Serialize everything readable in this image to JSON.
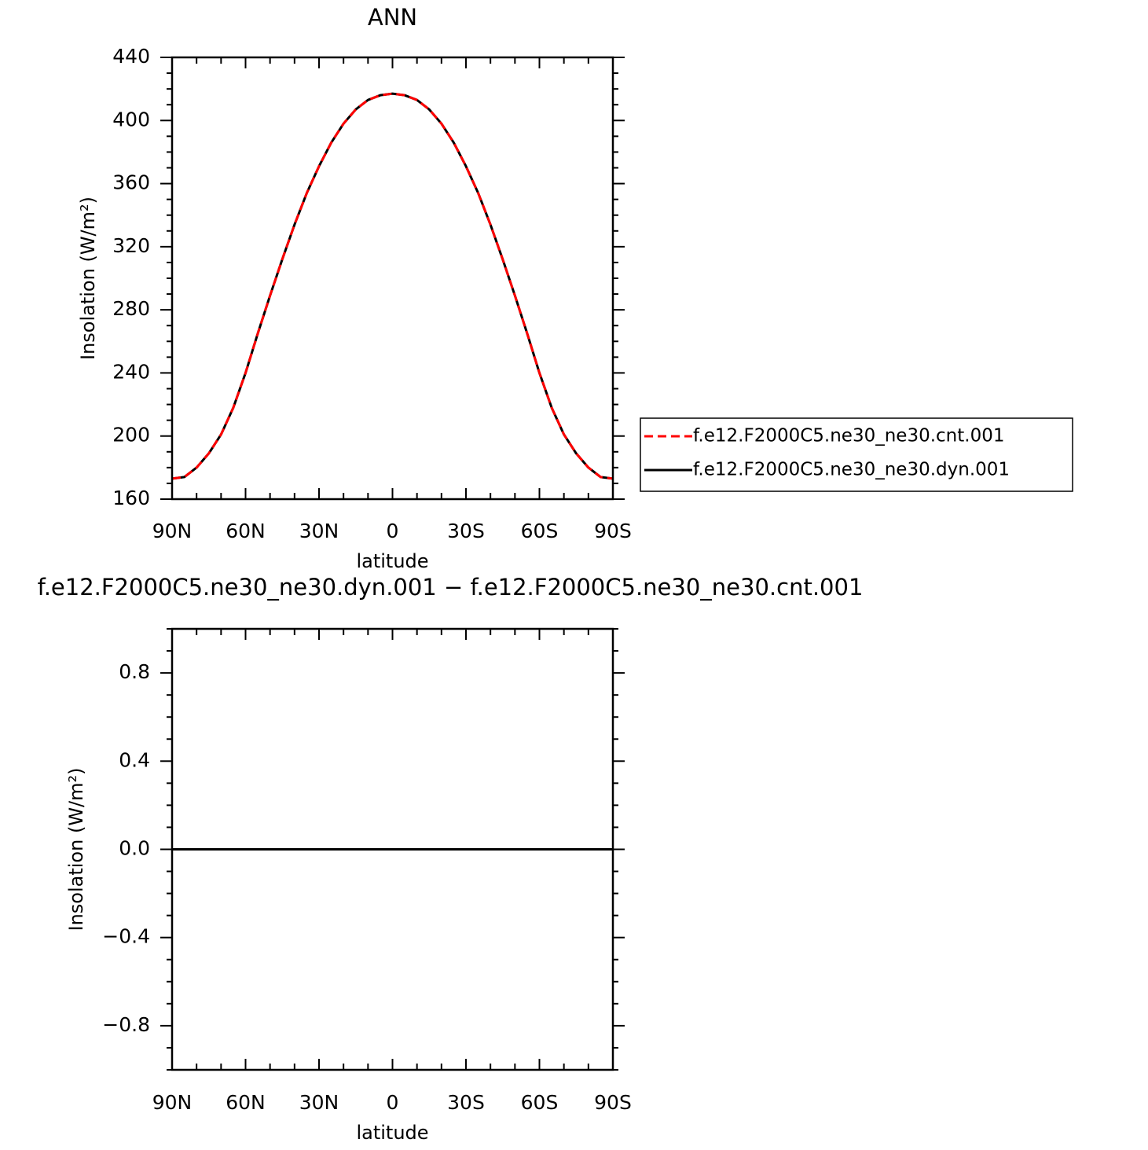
{
  "chart_data": [
    {
      "type": "line",
      "title": "ANN",
      "xlabel": "latitude",
      "ylabel": "Insolation  (W/m²)",
      "xlim": [
        -90,
        90
      ],
      "ylim": [
        160,
        440
      ],
      "xticks": [
        -90,
        -60,
        -30,
        0,
        30,
        60,
        90
      ],
      "xtick_labels": [
        "90N",
        "60N",
        "30N",
        "0",
        "30S",
        "60S",
        "90S"
      ],
      "yticks": [
        160,
        200,
        240,
        280,
        320,
        360,
        400,
        440
      ],
      "ytick_labels": [
        "160",
        "200",
        "240",
        "280",
        "320",
        "360",
        "400",
        "440"
      ],
      "x": [
        -90,
        -85,
        -80,
        -75,
        -70,
        -65,
        -60,
        -55,
        -50,
        -45,
        -40,
        -35,
        -30,
        -25,
        -20,
        -15,
        -10,
        -5,
        0,
        5,
        10,
        15,
        20,
        25,
        30,
        35,
        40,
        45,
        50,
        55,
        60,
        65,
        70,
        75,
        80,
        85,
        90
      ],
      "series": [
        {
          "name": "f.e12.F2000C5.ne30_ne30.cnt.001",
          "color": "#ff0000",
          "dash": "dashed",
          "values": [
            173,
            174,
            180,
            189,
            201,
            218,
            240,
            265,
            289,
            312,
            334,
            354,
            371,
            386,
            398,
            407,
            413,
            416,
            417,
            416,
            413,
            407,
            398,
            386,
            371,
            354,
            334,
            312,
            289,
            265,
            240,
            218,
            201,
            189,
            180,
            174,
            173
          ]
        },
        {
          "name": "f.e12.F2000C5.ne30_ne30.dyn.001",
          "color": "#000000",
          "dash": "solid",
          "values": [
            173,
            174,
            180,
            189,
            201,
            218,
            240,
            265,
            289,
            312,
            334,
            354,
            371,
            386,
            398,
            407,
            413,
            416,
            417,
            416,
            413,
            407,
            398,
            386,
            371,
            354,
            334,
            312,
            289,
            265,
            240,
            218,
            201,
            189,
            180,
            174,
            173
          ]
        }
      ],
      "legend_position": "right"
    },
    {
      "type": "line",
      "title": "f.e12.F2000C5.ne30_ne30.dyn.001  −  f.e12.F2000C5.ne30_ne30.cnt.001",
      "xlabel": "latitude",
      "ylabel": "Insolation  (W/m²)",
      "xlim": [
        -90,
        90
      ],
      "ylim": [
        -1,
        1
      ],
      "xticks": [
        -90,
        -60,
        -30,
        0,
        30,
        60,
        90
      ],
      "xtick_labels": [
        "90N",
        "60N",
        "30N",
        "0",
        "30S",
        "60S",
        "90S"
      ],
      "yticks": [
        -0.8,
        -0.4,
        0.0,
        0.4,
        0.8
      ],
      "ytick_labels": [
        "−0.8",
        "−0.4",
        "0.0",
        "0.4",
        "0.8"
      ],
      "x": [
        -90,
        90
      ],
      "series": [
        {
          "color": "#000000",
          "dash": "solid",
          "values": [
            0,
            0
          ]
        }
      ]
    }
  ]
}
